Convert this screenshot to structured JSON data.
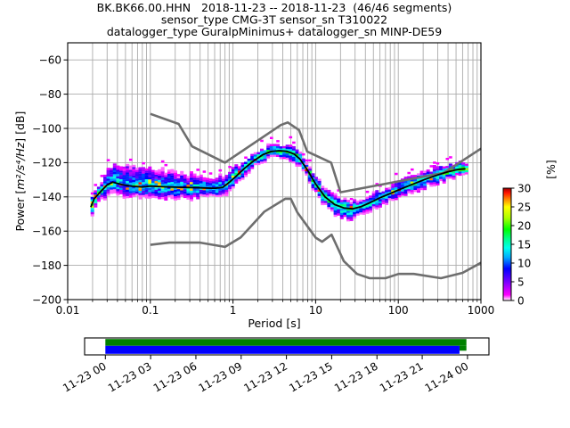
{
  "header": {
    "line1": "BK.BK66.00.HHN   2018-11-23 -- 2018-11-23  (46/46 segments)",
    "line2": "sensor_type CMG-3T sensor_sn T310022",
    "line3": "datalogger_type GuralpMinimus+ datalogger_sn MINP-DE59"
  },
  "chart_data": {
    "type": "heatmap",
    "subtype": "ppsd-probabilistic-power-spectral-density",
    "xlabel": "Period [s]",
    "ylabel": {
      "prefix": "Power [",
      "math": "m²/s⁴/Hz",
      "suffix": "] [dB]"
    },
    "x_scale": "log",
    "xlim": [
      0.01,
      1000
    ],
    "ylim": [
      -200,
      -50
    ],
    "grid": true,
    "grid_color": "#ababab",
    "xticks": {
      "values": [
        0.01,
        0.1,
        1,
        10,
        100,
        1000
      ],
      "labels": [
        "0.01",
        "0.1",
        "1",
        "10",
        "100",
        "1000"
      ]
    },
    "yticks": {
      "values": [
        -60,
        -80,
        -100,
        -120,
        -140,
        -160,
        -180,
        -200
      ],
      "labels": [
        "−60",
        "−80",
        "−100",
        "−120",
        "−140",
        "−160",
        "−180",
        "−200"
      ]
    },
    "colorbar": {
      "label": "[%]",
      "tick_values": [
        0,
        5,
        10,
        15,
        20,
        25,
        30
      ],
      "max": 30,
      "stops": [
        [
          0,
          "#ffffff"
        ],
        [
          1.5,
          "#ff00ff"
        ],
        [
          5,
          "#7700ff"
        ],
        [
          8.5,
          "#0000ff"
        ],
        [
          11.5,
          "#00aaff"
        ],
        [
          14,
          "#00ffee"
        ],
        [
          16.5,
          "#00ff88"
        ],
        [
          19,
          "#00ff00"
        ],
        [
          22,
          "#aaff00"
        ],
        [
          25,
          "#ffff00"
        ],
        [
          27,
          "#ff8800"
        ],
        [
          28.8,
          "#ff1100"
        ],
        [
          30,
          "#990000"
        ]
      ]
    },
    "noise_models": {
      "color": "#6e6e6e",
      "nhnm": [
        [
          0.1,
          -91.5
        ],
        [
          0.22,
          -97.4
        ],
        [
          0.32,
          -110.5
        ],
        [
          0.8,
          -120.0
        ],
        [
          3.8,
          -98.0
        ],
        [
          4.6,
          -96.5
        ],
        [
          6.3,
          -101.0
        ],
        [
          7.9,
          -113.5
        ],
        [
          15.4,
          -120.0
        ],
        [
          20.0,
          -137.3
        ],
        [
          354.8,
          -126.0
        ],
        [
          1000,
          -111.8
        ]
      ],
      "nlnm": [
        [
          0.1,
          -168.0
        ],
        [
          0.17,
          -166.7
        ],
        [
          0.4,
          -166.7
        ],
        [
          0.8,
          -169.2
        ],
        [
          1.24,
          -163.7
        ],
        [
          2.4,
          -148.6
        ],
        [
          4.3,
          -141.1
        ],
        [
          5.0,
          -141.1
        ],
        [
          6.0,
          -149.0
        ],
        [
          10.0,
          -163.8
        ],
        [
          12.0,
          -166.2
        ],
        [
          15.6,
          -162.1
        ],
        [
          21.9,
          -177.5
        ],
        [
          31.6,
          -185.0
        ],
        [
          45.0,
          -187.5
        ],
        [
          70.0,
          -187.5
        ],
        [
          101.0,
          -185.0
        ],
        [
          154.0,
          -185.0
        ],
        [
          328.0,
          -187.5
        ],
        [
          600.0,
          -184.4
        ],
        [
          1000,
          -178.5
        ]
      ]
    },
    "mean_curve": {
      "color": "#000000",
      "points": [
        [
          0.019,
          -146.0
        ],
        [
          0.021,
          -141.0
        ],
        [
          0.025,
          -137.0
        ],
        [
          0.03,
          -133.0
        ],
        [
          0.035,
          -131.4
        ],
        [
          0.045,
          -132.8
        ],
        [
          0.06,
          -133.8
        ],
        [
          0.08,
          -134.2
        ],
        [
          0.1,
          -133.7
        ],
        [
          0.15,
          -134.1
        ],
        [
          0.22,
          -134.4
        ],
        [
          0.32,
          -134.6
        ],
        [
          0.45,
          -134.8
        ],
        [
          0.6,
          -135.0
        ],
        [
          0.75,
          -134.5
        ],
        [
          0.9,
          -131.5
        ],
        [
          1.1,
          -127.8
        ],
        [
          1.4,
          -123.0
        ],
        [
          1.8,
          -118.8
        ],
        [
          2.3,
          -115.3
        ],
        [
          2.9,
          -113.5
        ],
        [
          3.6,
          -113.0
        ],
        [
          4.5,
          -113.4
        ],
        [
          5.5,
          -115.0
        ],
        [
          6.5,
          -118.0
        ],
        [
          8.0,
          -124.5
        ],
        [
          10.0,
          -132.5
        ],
        [
          13.0,
          -140.0
        ],
        [
          17.0,
          -144.5
        ],
        [
          22.0,
          -146.5
        ],
        [
          28.0,
          -147.0
        ],
        [
          35.0,
          -145.8
        ],
        [
          45.0,
          -143.5
        ],
        [
          60.0,
          -140.5
        ],
        [
          80.0,
          -138.0
        ],
        [
          110,
          -135.2
        ],
        [
          150,
          -132.6
        ],
        [
          210,
          -129.8
        ],
        [
          300,
          -127.2
        ],
        [
          400,
          -125.3
        ],
        [
          520,
          -124.0
        ],
        [
          650,
          -123.6
        ]
      ]
    },
    "histogram": {
      "period_range": [
        0.019,
        700
      ],
      "anchors_period_up_down_heat": [
        [
          0.02,
          3,
          6,
          0.85
        ],
        [
          0.024,
          5,
          5,
          0.6
        ],
        [
          0.03,
          9,
          6,
          0.45
        ],
        [
          0.04,
          11,
          6,
          0.45
        ],
        [
          0.06,
          12,
          6,
          0.45
        ],
        [
          0.1,
          11,
          6,
          0.48
        ],
        [
          0.18,
          9,
          6,
          0.45
        ],
        [
          0.3,
          8,
          6,
          0.45
        ],
        [
          0.5,
          7,
          5,
          0.5
        ],
        [
          0.8,
          6,
          5,
          0.52
        ],
        [
          1.2,
          5,
          4,
          0.55
        ],
        [
          2.0,
          4,
          3.5,
          0.58
        ],
        [
          3.5,
          3.5,
          3,
          0.6
        ],
        [
          5.0,
          3.5,
          3.5,
          0.6
        ],
        [
          7.0,
          4.5,
          4.5,
          0.62
        ],
        [
          10,
          5,
          5,
          0.62
        ],
        [
          15,
          5,
          5,
          0.55
        ],
        [
          25,
          5,
          6,
          0.58
        ],
        [
          40,
          5,
          5,
          0.5
        ],
        [
          70,
          4.5,
          4.5,
          0.47
        ],
        [
          120,
          4.5,
          4.5,
          0.5
        ],
        [
          250,
          4.5,
          4.5,
          0.55
        ],
        [
          450,
          4,
          4,
          0.7
        ],
        [
          650,
          4,
          4,
          0.8
        ]
      ]
    }
  },
  "timeline": {
    "labels": [
      "11-23 00",
      "11-23 03",
      "11-23 06",
      "11-23 09",
      "11-23 12",
      "11-23 15",
      "11-23 18",
      "11-23 21",
      "11-24 00"
    ],
    "bars": [
      {
        "name": "data-coverage-green",
        "color": "#008000",
        "start": 0.0,
        "end": 0.997
      },
      {
        "name": "used-segments-blue",
        "color": "#0000ff",
        "start": 0.0,
        "end": 0.978
      }
    ]
  }
}
